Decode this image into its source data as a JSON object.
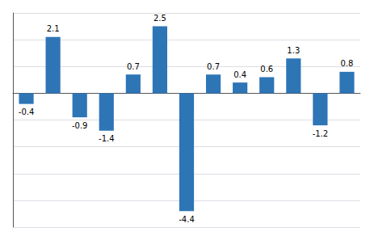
{
  "chart_data": {
    "type": "bar",
    "categories": [
      null,
      null,
      null,
      null,
      null,
      null,
      null,
      null,
      null,
      null,
      null,
      null,
      null
    ],
    "values": [
      -0.4,
      2.1,
      -0.9,
      -1.4,
      0.7,
      2.5,
      -4.4,
      0.7,
      0.4,
      0.6,
      1.3,
      -1.2,
      0.8
    ],
    "color": "#2e75b6",
    "ylim": [
      -5.0,
      3.0
    ],
    "yticks": [
      -5,
      -4,
      -3,
      -2,
      -1,
      0,
      1,
      2,
      3
    ],
    "grid": true,
    "data_labels": true,
    "tick_labels": false
  }
}
